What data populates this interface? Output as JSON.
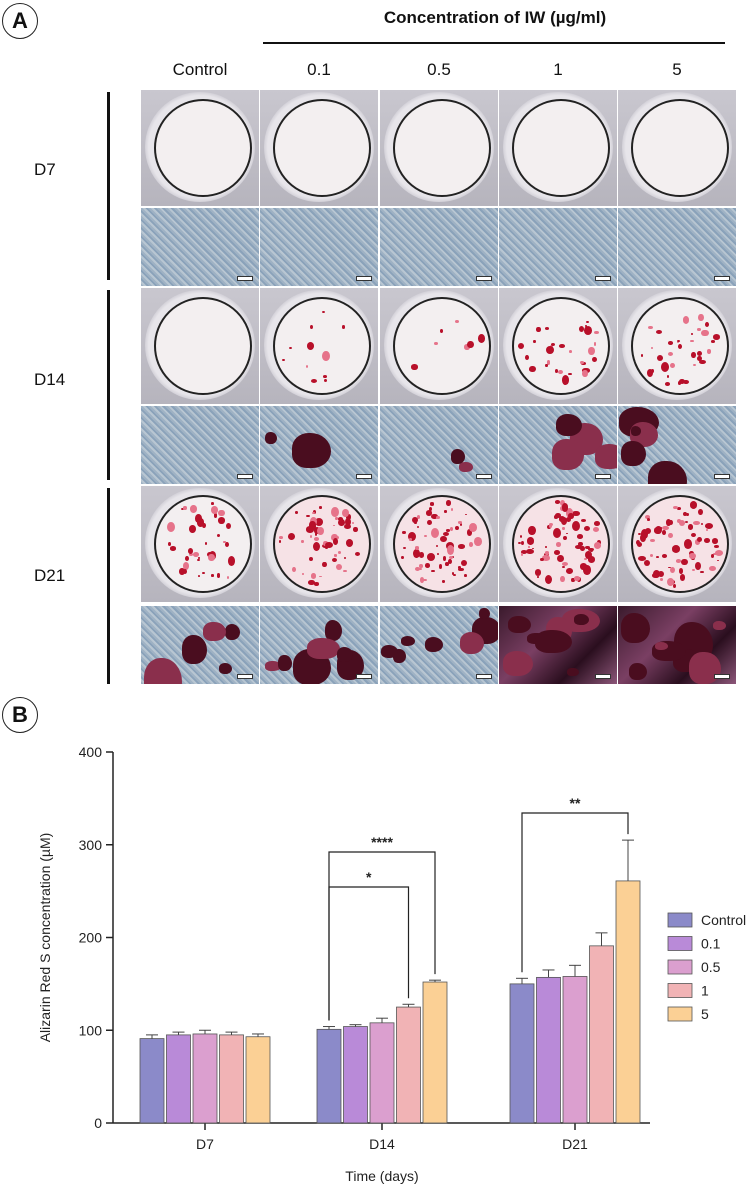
{
  "panel_a": {
    "badge": "A",
    "concentration_title": "Concentration of IW (µg/ml)",
    "columns": [
      "Control",
      "0.1",
      "0.5",
      "1",
      "5"
    ],
    "rows": [
      "D7",
      "D14",
      "D21"
    ],
    "stain_density": [
      [
        0,
        0,
        0,
        0,
        0
      ],
      [
        0,
        0.15,
        0.1,
        0.45,
        0.5
      ],
      [
        0.55,
        0.8,
        0.9,
        1.0,
        1.0
      ]
    ],
    "colors": {
      "stain": "#b8102a",
      "dark_stain": "#4a0d1f",
      "cell_blue": "#7f9bb8"
    }
  },
  "panel_b": {
    "badge": "B"
  },
  "chart_data": {
    "type": "bar",
    "categories": [
      "D7",
      "D14",
      "D21"
    ],
    "xlabel": "Time (days)",
    "ylabel": "Alizarin Red S concentration (µM)",
    "ylim": [
      0,
      400
    ],
    "yticks": [
      "0",
      "100",
      "200",
      "300",
      "400"
    ],
    "legend_position": "right",
    "series": [
      {
        "name": "Control",
        "color": "#8b8ac9",
        "values": [
          91,
          101,
          150
        ],
        "errors": [
          4,
          3,
          6
        ]
      },
      {
        "name": "0.1",
        "color": "#b98ad8",
        "values": [
          95,
          104,
          157
        ],
        "errors": [
          3,
          2,
          8
        ]
      },
      {
        "name": "0.5",
        "color": "#db9fcf",
        "values": [
          96,
          108,
          158
        ],
        "errors": [
          4,
          5,
          12
        ]
      },
      {
        "name": "1",
        "color": "#f1b3b5",
        "values": [
          95,
          125,
          191
        ],
        "errors": [
          3,
          3,
          14
        ]
      },
      {
        "name": "5",
        "color": "#fbd095",
        "values": [
          93,
          152,
          261
        ],
        "errors": [
          3,
          2,
          44
        ]
      }
    ],
    "annotations": [
      {
        "label": "****",
        "group": "D14",
        "from_series": "Control",
        "to_series": "5"
      },
      {
        "label": "*",
        "group": "D14",
        "from_series": "Control",
        "to_series": "1"
      },
      {
        "label": "**",
        "group": "D21",
        "from_series": "Control",
        "to_series": "5"
      }
    ]
  }
}
